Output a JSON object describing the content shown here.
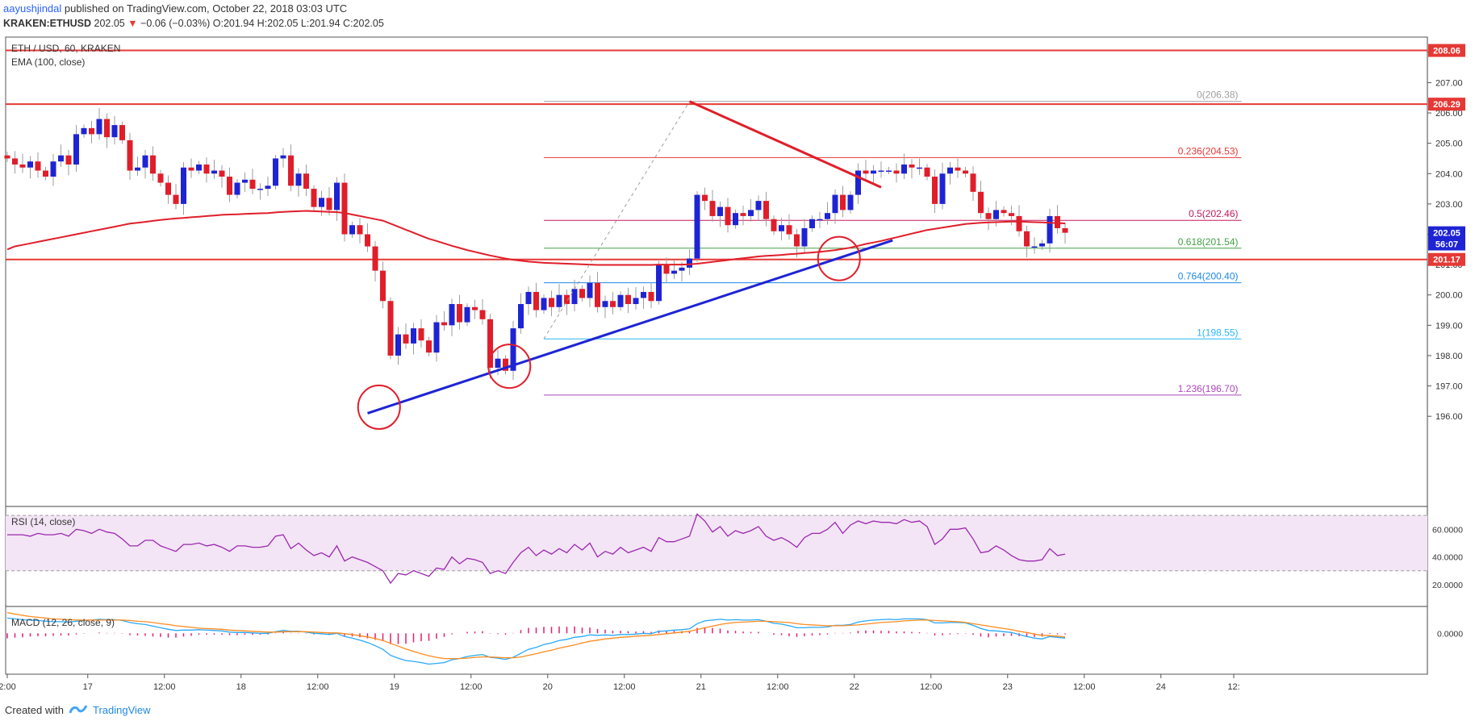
{
  "header": {
    "author": "aayushjindal",
    "published_text": "published on TradingView.com, October 22, 2018 03:03 UTC",
    "ticker_line": {
      "symbol": "KRAKEN:ETHUSD",
      "last": "202.05",
      "change": "−0.06 (−0.03%)",
      "open": "O:201.94",
      "high": "H:202.05",
      "low": "L:201.94",
      "close": "C:202.05"
    }
  },
  "chart_title": "ETH / USD, 60, KRAKEN",
  "ema_label": "EMA (100, close)",
  "rsi_label": "RSI (14, close)",
  "macd_label": "MACD (12, 26, close, 9)",
  "footer": {
    "created_with": "Created with",
    "brand": "TradingView"
  },
  "chart_data": [
    {
      "type": "candlestick",
      "title": "ETH / USD, 60, KRAKEN",
      "ylim": [
        195.5,
        208.5
      ],
      "y_ticks": [
        "196.00",
        "197.00",
        "198.00",
        "199.00",
        "200.00",
        "201.00",
        "202.00",
        "203.00",
        "204.00",
        "205.00",
        "206.00",
        "207.00",
        "208.00"
      ],
      "x_ticks": [
        {
          "pos": 0.0,
          "label": "2:00"
        },
        {
          "pos": 10.5,
          "label": "17"
        },
        {
          "pos": 20.5,
          "label": "12:00"
        },
        {
          "pos": 30.5,
          "label": "18"
        },
        {
          "pos": 40.5,
          "label": "12:00"
        },
        {
          "pos": 50.5,
          "label": "19"
        },
        {
          "pos": 60.5,
          "label": "12:00"
        },
        {
          "pos": 70.5,
          "label": "20"
        },
        {
          "pos": 80.5,
          "label": "12:00"
        },
        {
          "pos": 90.5,
          "label": "21"
        },
        {
          "pos": 100.5,
          "label": "12:00"
        },
        {
          "pos": 110.5,
          "label": "22"
        },
        {
          "pos": 120.5,
          "label": "12:00"
        },
        {
          "pos": 130.5,
          "label": "23"
        },
        {
          "pos": 140.5,
          "label": "12:00"
        },
        {
          "pos": 150.5,
          "label": "24"
        },
        {
          "pos": 160,
          "label": "12:"
        }
      ],
      "close": [
        204.5,
        204.3,
        204.2,
        204.4,
        204.1,
        203.9,
        204.4,
        204.6,
        204.3,
        205.3,
        205.5,
        205.3,
        205.8,
        205.2,
        205.6,
        205.1,
        204.1,
        204.2,
        204.6,
        204.0,
        203.7,
        203.3,
        203.0,
        204.2,
        204.1,
        204.3,
        204.0,
        204.1,
        203.9,
        203.3,
        203.7,
        203.8,
        203.5,
        203.5,
        203.6,
        204.5,
        204.6,
        203.6,
        204.0,
        203.5,
        202.9,
        203.2,
        202.8,
        203.7,
        202.0,
        202.3,
        202.0,
        201.6,
        200.8,
        199.8,
        198.0,
        198.7,
        198.4,
        198.9,
        198.5,
        198.1,
        199.1,
        199.0,
        199.7,
        199.1,
        199.6,
        199.5,
        199.2,
        197.6,
        197.9,
        197.5,
        198.9,
        199.7,
        200.1,
        199.5,
        199.9,
        199.6,
        200.0,
        199.7,
        200.2,
        199.9,
        200.4,
        199.6,
        199.8,
        199.6,
        200.0,
        199.7,
        199.9,
        200.1,
        199.8,
        201.0,
        200.7,
        200.8,
        200.9,
        201.2,
        203.3,
        203.1,
        202.6,
        202.9,
        202.3,
        202.7,
        202.6,
        202.8,
        203.1,
        202.5,
        202.1,
        202.3,
        202.0,
        201.6,
        202.2,
        202.5,
        202.5,
        202.7,
        203.3,
        202.8,
        203.3,
        204.1,
        204.0,
        204.1,
        204.1,
        204.1,
        204.0,
        204.3,
        204.2,
        204.2,
        203.9,
        203.0,
        204.0,
        204.2,
        204.1,
        204.0,
        203.4,
        202.7,
        202.5,
        202.8,
        202.7,
        202.6,
        202.1,
        201.6,
        201.6,
        201.7,
        202.6,
        202.2,
        202.05
      ],
      "ema100": [
        201.5,
        201.6,
        201.65,
        201.7,
        201.75,
        201.8,
        201.85,
        201.9,
        201.95,
        202.0,
        202.05,
        202.1,
        202.15,
        202.2,
        202.25,
        202.3,
        202.35,
        202.38,
        202.41,
        202.44,
        202.47,
        202.5,
        202.52,
        202.54,
        202.56,
        202.58,
        202.6,
        202.62,
        202.64,
        202.65,
        202.66,
        202.67,
        202.68,
        202.69,
        202.7,
        202.72,
        202.74,
        202.75,
        202.76,
        202.77,
        202.76,
        202.75,
        202.74,
        202.73,
        202.7,
        202.65,
        202.6,
        202.55,
        202.5,
        202.45,
        202.35,
        202.25,
        202.15,
        202.05,
        201.95,
        201.85,
        201.78,
        201.7,
        201.62,
        201.55,
        201.48,
        201.42,
        201.36,
        201.3,
        201.25,
        201.2,
        201.16,
        201.13,
        201.1,
        201.08,
        201.06,
        201.05,
        201.04,
        201.03,
        201.02,
        201.01,
        201.0,
        200.99,
        200.99,
        200.99,
        200.99,
        200.99,
        200.99,
        200.99,
        200.99,
        201.0,
        201.0,
        201.0,
        201.0,
        201.01,
        201.03,
        201.06,
        201.09,
        201.12,
        201.15,
        201.18,
        201.21,
        201.24,
        201.27,
        201.29,
        201.3,
        201.32,
        201.34,
        201.36,
        201.38,
        201.4,
        201.42,
        201.45,
        201.48,
        201.52,
        201.56,
        201.62,
        201.68,
        201.73,
        201.78,
        201.84,
        201.9,
        201.96,
        202.02,
        202.08,
        202.14,
        202.18,
        202.22,
        202.26,
        202.3,
        202.34,
        202.36,
        202.38,
        202.39,
        202.4,
        202.41,
        202.42,
        202.42,
        202.41,
        202.4,
        202.39,
        202.38,
        202.37,
        202.36
      ],
      "levels": [
        {
          "price": 208.06,
          "label": "208.06",
          "kind": "resistance"
        },
        {
          "price": 206.29,
          "label": "206.29",
          "kind": "resistance"
        },
        {
          "price": 201.17,
          "label": "201.17",
          "kind": "support"
        }
      ],
      "fib": [
        {
          "ratio": "0",
          "price": 206.38,
          "text": "0(206.38)",
          "color": "#9e9e9e"
        },
        {
          "ratio": "0.236",
          "price": 204.53,
          "text": "0.236(204.53)",
          "color": "#e53935"
        },
        {
          "ratio": "0.5",
          "price": 202.46,
          "text": "0.5(202.46)",
          "color": "#c2185b"
        },
        {
          "ratio": "0.618",
          "price": 201.54,
          "text": "0.618(201.54)",
          "color": "#43a047"
        },
        {
          "ratio": "0.764",
          "price": 200.4,
          "text": "0.764(200.40)",
          "color": "#1e88e5"
        },
        {
          "ratio": "1",
          "price": 198.55,
          "text": "1(198.55)",
          "color": "#29b6f6"
        },
        {
          "ratio": "1.236",
          "price": 196.7,
          "text": "1.236(196.70)",
          "color": "#ab47bc"
        }
      ],
      "fib_range": {
        "from_bar": 70,
        "to_bar": 161
      },
      "trendlines": [
        {
          "name": "bullish-trendline",
          "from": [
            47,
            196.1
          ],
          "to": [
            115.5,
            201.8
          ],
          "color": "#1e24d4"
        },
        {
          "name": "bearish-trendline",
          "from": [
            89,
            206.38
          ],
          "to": [
            114,
            203.55
          ],
          "color": "#e01e2a"
        },
        {
          "name": "fib-guide",
          "from": [
            70,
            198.55
          ],
          "to": [
            89,
            206.38
          ],
          "color": "#9e9e9e"
        }
      ],
      "circles": [
        [
          48.5,
          196.3
        ],
        [
          65.5,
          197.65
        ],
        [
          108.5,
          201.2
        ]
      ],
      "price_tags": [
        {
          "text": "208.06",
          "price": 208.06,
          "color": "#e53935"
        },
        {
          "text": "206.29",
          "price": 206.29,
          "color": "#e53935"
        },
        {
          "text": "202.05",
          "price": 202.05,
          "color": "#1e24d4"
        },
        {
          "text": "56:07",
          "price": 201.68,
          "color": "#1e24d4"
        },
        {
          "text": "201.17",
          "price": 201.17,
          "color": "#e53935"
        }
      ]
    },
    {
      "type": "line",
      "title": "RSI (14, close)",
      "ylim": [
        17,
        73
      ],
      "y_ticks": [
        "20.0000",
        "40.0000",
        "60.0000"
      ],
      "bands": [
        30,
        70
      ],
      "values": [
        56,
        56,
        56,
        55,
        57,
        56,
        56,
        57,
        55,
        60,
        59,
        57,
        60,
        58,
        57,
        53,
        48,
        48,
        52,
        52,
        48,
        46,
        44,
        49,
        49,
        50,
        48,
        49,
        47,
        44,
        48,
        48,
        47,
        47,
        48,
        55,
        56,
        46,
        50,
        45,
        41,
        43,
        40,
        48,
        37,
        40,
        38,
        36,
        33,
        30,
        21,
        28,
        27,
        30,
        28,
        26,
        32,
        31,
        40,
        35,
        39,
        38,
        36,
        28,
        30,
        28,
        36,
        43,
        47,
        41,
        45,
        42,
        46,
        43,
        49,
        45,
        50,
        40,
        44,
        42,
        47,
        43,
        45,
        47,
        44,
        54,
        51,
        51,
        53,
        55,
        71,
        66,
        58,
        62,
        55,
        59,
        57,
        59,
        62,
        55,
        52,
        54,
        51,
        47,
        54,
        57,
        57,
        60,
        65,
        57,
        63,
        66,
        64,
        66,
        65,
        65,
        64,
        67,
        65,
        66,
        62,
        49,
        53,
        60,
        60,
        61,
        53,
        43,
        44,
        48,
        45,
        41,
        38,
        37,
        37,
        38,
        46,
        41,
        42
      ]
    },
    {
      "type": "line",
      "title": "MACD (12, 26, close, 9)",
      "ylim": [
        -0.9,
        0.55
      ],
      "y_ticks": [
        "0.0000"
      ],
      "macd": [
        0.38,
        0.36,
        0.34,
        0.33,
        0.32,
        0.3,
        0.29,
        0.29,
        0.28,
        0.3,
        0.32,
        0.33,
        0.35,
        0.34,
        0.34,
        0.32,
        0.27,
        0.24,
        0.22,
        0.18,
        0.14,
        0.1,
        0.07,
        0.08,
        0.08,
        0.09,
        0.08,
        0.07,
        0.06,
        0.03,
        0.02,
        0.02,
        0.01,
        0,
        0,
        0.04,
        0.07,
        0.05,
        0.05,
        0.03,
        0,
        -0.01,
        -0.03,
        0,
        -0.08,
        -0.12,
        -0.17,
        -0.23,
        -0.31,
        -0.4,
        -0.55,
        -0.62,
        -0.68,
        -0.7,
        -0.73,
        -0.77,
        -0.75,
        -0.73,
        -0.66,
        -0.63,
        -0.58,
        -0.55,
        -0.53,
        -0.6,
        -0.62,
        -0.65,
        -0.6,
        -0.5,
        -0.4,
        -0.35,
        -0.28,
        -0.24,
        -0.18,
        -0.15,
        -0.1,
        -0.08,
        -0.04,
        -0.05,
        -0.04,
        -0.05,
        -0.03,
        -0.03,
        -0.02,
        0,
        -0.01,
        0.05,
        0.06,
        0.08,
        0.09,
        0.11,
        0.24,
        0.31,
        0.33,
        0.35,
        0.33,
        0.34,
        0.33,
        0.33,
        0.34,
        0.3,
        0.25,
        0.23,
        0.19,
        0.14,
        0.14,
        0.15,
        0.15,
        0.16,
        0.2,
        0.2,
        0.22,
        0.28,
        0.31,
        0.33,
        0.34,
        0.35,
        0.34,
        0.36,
        0.36,
        0.36,
        0.34,
        0.26,
        0.26,
        0.27,
        0.27,
        0.26,
        0.2,
        0.12,
        0.07,
        0.06,
        0.04,
        0.02,
        -0.03,
        -0.08,
        -0.12,
        -0.14,
        -0.08,
        -0.1,
        -0.12
      ],
      "signal": [
        0.52,
        0.48,
        0.45,
        0.42,
        0.4,
        0.38,
        0.36,
        0.35,
        0.34,
        0.33,
        0.33,
        0.33,
        0.33,
        0.33,
        0.33,
        0.33,
        0.32,
        0.3,
        0.29,
        0.27,
        0.24,
        0.22,
        0.19,
        0.17,
        0.15,
        0.13,
        0.12,
        0.11,
        0.1,
        0.08,
        0.07,
        0.06,
        0.05,
        0.04,
        0.03,
        0.03,
        0.04,
        0.04,
        0.04,
        0.04,
        0.03,
        0.02,
        0.01,
        0.01,
        -0.01,
        -0.03,
        -0.06,
        -0.09,
        -0.13,
        -0.18,
        -0.25,
        -0.32,
        -0.39,
        -0.45,
        -0.51,
        -0.56,
        -0.6,
        -0.63,
        -0.63,
        -0.63,
        -0.62,
        -0.6,
        -0.59,
        -0.59,
        -0.6,
        -0.61,
        -0.61,
        -0.59,
        -0.55,
        -0.51,
        -0.46,
        -0.42,
        -0.37,
        -0.33,
        -0.29,
        -0.24,
        -0.2,
        -0.17,
        -0.14,
        -0.12,
        -0.1,
        -0.09,
        -0.07,
        -0.06,
        -0.05,
        -0.03,
        -0.01,
        0.01,
        0.03,
        0.05,
        0.09,
        0.14,
        0.18,
        0.22,
        0.25,
        0.27,
        0.28,
        0.29,
        0.3,
        0.3,
        0.29,
        0.28,
        0.27,
        0.24,
        0.22,
        0.21,
        0.2,
        0.19,
        0.19,
        0.19,
        0.2,
        0.21,
        0.23,
        0.25,
        0.27,
        0.28,
        0.29,
        0.31,
        0.32,
        0.33,
        0.33,
        0.32,
        0.31,
        0.3,
        0.29,
        0.27,
        0.24,
        0.21,
        0.18,
        0.15,
        0.12,
        0.09,
        0.05,
        0.02,
        -0.02,
        -0.05,
        -0.06,
        -0.07,
        -0.09
      ]
    }
  ]
}
